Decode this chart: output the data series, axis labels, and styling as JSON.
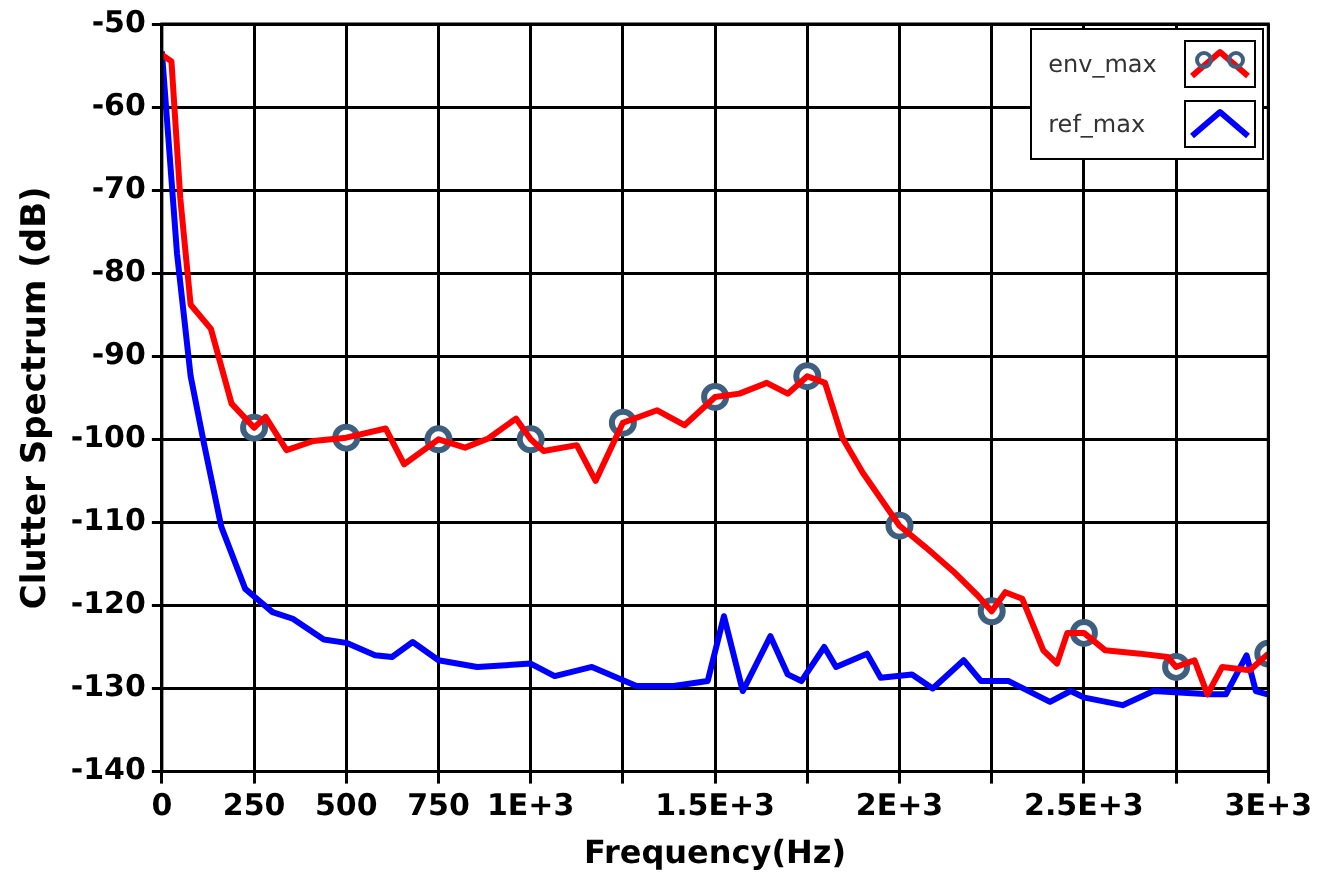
{
  "chart_data": {
    "type": "line",
    "xlabel": "Frequency(Hz)",
    "ylabel": "Clutter Spectrum (dB)",
    "xlim": [
      0,
      3000
    ],
    "ylim": [
      -140,
      -50
    ],
    "xticks": [
      0,
      250,
      500,
      750,
      {
        "value": 1000,
        "label": "1E+3"
      },
      {
        "value": 1250,
        "label": null
      },
      {
        "value": 1500,
        "label": "1.5E+3"
      },
      {
        "value": 1750,
        "label": null
      },
      {
        "value": 2000,
        "label": "2E+3"
      },
      {
        "value": 2250,
        "label": null
      },
      {
        "value": 2500,
        "label": "2.5E+3"
      },
      {
        "value": 2750,
        "label": null
      },
      {
        "value": 3000,
        "label": "3E+3"
      }
    ],
    "yticks": [
      -140,
      -130,
      -120,
      -110,
      -100,
      -90,
      -80,
      -70,
      -60,
      -50
    ],
    "grid": true,
    "legend": "top right",
    "line_style": "solid",
    "series": [
      {
        "name": "env_max",
        "color": "#ff0000",
        "marker": "none",
        "x": [
          0,
          26,
          50,
          78,
          133,
          189,
          250,
          281,
          338,
          411,
          500,
          607,
          657,
          750,
          822,
          885,
          960,
          1000,
          1035,
          1125,
          1176,
          1250,
          1343,
          1417,
          1500,
          1566,
          1640,
          1697,
          1750,
          1798,
          1845,
          1900,
          2000,
          2071,
          2146,
          2212,
          2250,
          2287,
          2333,
          2390,
          2427,
          2455,
          2500,
          2558,
          2652,
          2727,
          2750,
          2800,
          2835,
          2875,
          2950,
          3000
        ],
        "values": [
          -53.7,
          -54.5,
          -71,
          -83.8,
          -86.7,
          -95.7,
          -98.6,
          -97.3,
          -101.3,
          -100.2,
          -99.8,
          -98.7,
          -103,
          -100,
          -101,
          -99.9,
          -97.5,
          -100,
          -101.4,
          -100.7,
          -105,
          -98,
          -96.5,
          -98.3,
          -94.9,
          -94.5,
          -93.2,
          -94.5,
          -92.4,
          -93.2,
          -99.8,
          -104,
          -110.4,
          -113,
          -115.9,
          -118.8,
          -120.7,
          -118.4,
          -119.2,
          -125.4,
          -127,
          -123.3,
          -123.3,
          -125.4,
          -125.8,
          -126.2,
          -127.4,
          -126.6,
          -130.7,
          -127.4,
          -127.8,
          -125.8
        ]
      },
      {
        "type": "scatter",
        "color": "#3f5f80",
        "marker": "circle",
        "x": [
          250,
          500,
          750,
          1000,
          1250,
          1500,
          1750,
          2000,
          2250,
          2500,
          2750,
          3000
        ],
        "values": [
          -98.6,
          -99.8,
          -100,
          -100,
          -98,
          -94.9,
          -92.4,
          -110.4,
          -120.7,
          -123.3,
          -127.4,
          -125.8
        ]
      },
      {
        "name": "ref_max",
        "color": "#0000ff",
        "marker": "none",
        "x": [
          0,
          41,
          78,
          115,
          161,
          226,
          300,
          355,
          439,
          500,
          578,
          624,
          680,
          750,
          855,
          1000,
          1065,
          1166,
          1287,
          1388,
          1480,
          1524,
          1575,
          1650,
          1697,
          1734,
          1796,
          1828,
          1912,
          1949,
          2034,
          2090,
          2174,
          2221,
          2296,
          2408,
          2464,
          2502,
          2605,
          2689,
          2839,
          2885,
          2941,
          2966,
          2998
        ],
        "values": [
          -53.3,
          -77.6,
          -92.4,
          -100.7,
          -110.5,
          -118,
          -120.8,
          -121.6,
          -124.1,
          -124.5,
          -126,
          -126.2,
          -124.4,
          -126.6,
          -127.4,
          -127,
          -128.5,
          -127.4,
          -129.7,
          -129.7,
          -129.1,
          -121.3,
          -130.3,
          -123.7,
          -128.3,
          -129.1,
          -125,
          -127.4,
          -125.8,
          -128.7,
          -128.3,
          -130,
          -126.6,
          -129.1,
          -129.1,
          -131.6,
          -130.3,
          -131.1,
          -132,
          -130.3,
          -130.7,
          -130.7,
          -126,
          -130.3,
          -130.7
        ]
      }
    ]
  }
}
